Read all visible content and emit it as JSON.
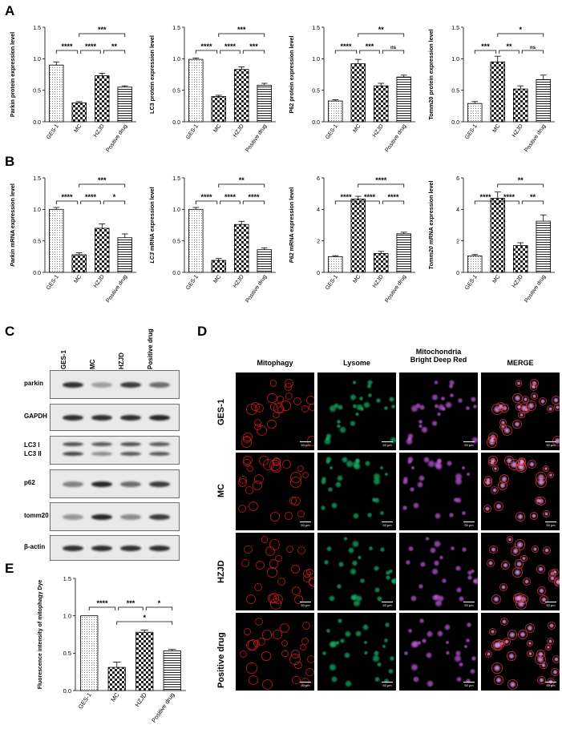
{
  "panel_letters": {
    "A": "A",
    "B": "B",
    "C": "C",
    "D": "D",
    "E": "E"
  },
  "chart_data": [
    {
      "id": "A1",
      "type": "bar",
      "ylabel": "Parkin protein expression level",
      "categories": [
        "GES-1",
        "MC",
        "HZJD",
        "Positive drug"
      ],
      "values": [
        0.9,
        0.3,
        0.73,
        0.55
      ],
      "errors": [
        0.05,
        0.02,
        0.04,
        0.02
      ],
      "ylim": [
        0,
        1.5
      ],
      "yticks": [
        "0.0",
        "0.5",
        "1.0",
        "1.5"
      ],
      "significance": [
        {
          "from": 0,
          "to": 1,
          "label": "****"
        },
        {
          "from": 1,
          "to": 2,
          "label": "****"
        },
        {
          "from": 2,
          "to": 3,
          "label": "**"
        },
        {
          "from": 1,
          "to": 3,
          "label": "***"
        }
      ]
    },
    {
      "id": "A2",
      "type": "bar",
      "ylabel": "LC3 protein expression level",
      "categories": [
        "GES-1",
        "MC",
        "HZJD",
        "Positive drug"
      ],
      "values": [
        0.99,
        0.4,
        0.83,
        0.58
      ],
      "errors": [
        0.02,
        0.02,
        0.04,
        0.03
      ],
      "ylim": [
        0,
        1.5
      ],
      "yticks": [
        "0.0",
        "0.5",
        "1.0",
        "1.5"
      ],
      "significance": [
        {
          "from": 0,
          "to": 1,
          "label": "****"
        },
        {
          "from": 1,
          "to": 2,
          "label": "****"
        },
        {
          "from": 2,
          "to": 3,
          "label": "***"
        },
        {
          "from": 1,
          "to": 3,
          "label": "***"
        }
      ]
    },
    {
      "id": "A3",
      "type": "bar",
      "ylabel": "P62 protein expression level",
      "categories": [
        "GES-1",
        "MC",
        "HZJD",
        "Positive drug"
      ],
      "values": [
        0.33,
        0.92,
        0.57,
        0.71
      ],
      "errors": [
        0.02,
        0.07,
        0.04,
        0.03
      ],
      "ylim": [
        0,
        1.5
      ],
      "yticks": [
        "0.0",
        "0.5",
        "1.0",
        "1.5"
      ],
      "significance": [
        {
          "from": 0,
          "to": 1,
          "label": "****"
        },
        {
          "from": 1,
          "to": 2,
          "label": "***"
        },
        {
          "from": 2,
          "to": 3,
          "label": "ns"
        },
        {
          "from": 1,
          "to": 3,
          "label": "**"
        }
      ]
    },
    {
      "id": "A4",
      "type": "bar",
      "ylabel": "Tomm20 protein expression level",
      "categories": [
        "GES-1",
        "MC",
        "HZJD",
        "Positive drug"
      ],
      "values": [
        0.29,
        0.95,
        0.52,
        0.67
      ],
      "errors": [
        0.03,
        0.09,
        0.05,
        0.07
      ],
      "ylim": [
        0,
        1.5
      ],
      "yticks": [
        "0.0",
        "0.5",
        "1.0",
        "1.5"
      ],
      "significance": [
        {
          "from": 0,
          "to": 1,
          "label": "***"
        },
        {
          "from": 1,
          "to": 2,
          "label": "**"
        },
        {
          "from": 2,
          "to": 3,
          "label": "ns"
        },
        {
          "from": 1,
          "to": 3,
          "label": "*"
        }
      ]
    },
    {
      "id": "B1",
      "type": "bar",
      "ylabel_italic": "Parkin",
      "ylabel_rest": " mRNA expression level",
      "categories": [
        "GES-1",
        "MC",
        "HZJD",
        "Positive drug"
      ],
      "values": [
        1.0,
        0.28,
        0.7,
        0.55
      ],
      "errors": [
        0.03,
        0.03,
        0.07,
        0.06
      ],
      "ylim": [
        0,
        1.5
      ],
      "yticks": [
        "0.0",
        "0.5",
        "1.0",
        "1.5"
      ],
      "significance": [
        {
          "from": 0,
          "to": 1,
          "label": "****"
        },
        {
          "from": 1,
          "to": 2,
          "label": "****"
        },
        {
          "from": 2,
          "to": 3,
          "label": "*"
        },
        {
          "from": 1,
          "to": 3,
          "label": "***"
        }
      ]
    },
    {
      "id": "B2",
      "type": "bar",
      "ylabel_italic": "LC3",
      "ylabel_rest": " mRNA expression level",
      "categories": [
        "GES-1",
        "MC",
        "HZJD",
        "Positive drug"
      ],
      "values": [
        1.0,
        0.19,
        0.76,
        0.36
      ],
      "errors": [
        0.03,
        0.03,
        0.05,
        0.03
      ],
      "ylim": [
        0,
        1.5
      ],
      "yticks": [
        "0.0",
        "0.5",
        "1.0",
        "1.5"
      ],
      "significance": [
        {
          "from": 0,
          "to": 1,
          "label": "****"
        },
        {
          "from": 1,
          "to": 2,
          "label": "****"
        },
        {
          "from": 2,
          "to": 3,
          "label": "****"
        },
        {
          "from": 1,
          "to": 3,
          "label": "**"
        }
      ]
    },
    {
      "id": "B3",
      "type": "bar",
      "ylabel_italic": "P62",
      "ylabel_rest": " mRNA expression level",
      "categories": [
        "GES-1",
        "MC",
        "HZJD",
        "Positive drug"
      ],
      "values": [
        1.0,
        4.65,
        1.2,
        2.45
      ],
      "errors": [
        0.06,
        0.18,
        0.13,
        0.1
      ],
      "ylim": [
        0,
        6
      ],
      "yticks": [
        "0",
        "2",
        "4",
        "6"
      ],
      "significance": [
        {
          "from": 0,
          "to": 1,
          "label": "****"
        },
        {
          "from": 1,
          "to": 2,
          "label": "****"
        },
        {
          "from": 2,
          "to": 3,
          "label": "****"
        },
        {
          "from": 1,
          "to": 3,
          "label": "****"
        }
      ]
    },
    {
      "id": "B4",
      "type": "bar",
      "ylabel_italic": "Tomm20",
      "ylabel_rest": " mRNA expression level",
      "categories": [
        "GES-1",
        "MC",
        "HZJD",
        "Positive drug"
      ],
      "values": [
        1.05,
        4.7,
        1.7,
        3.25
      ],
      "errors": [
        0.08,
        0.4,
        0.18,
        0.4
      ],
      "ylim": [
        0,
        6
      ],
      "yticks": [
        "0",
        "2",
        "4",
        "6"
      ],
      "significance": [
        {
          "from": 0,
          "to": 1,
          "label": "****"
        },
        {
          "from": 1,
          "to": 2,
          "label": "****"
        },
        {
          "from": 2,
          "to": 3,
          "label": "**"
        },
        {
          "from": 1,
          "to": 3,
          "label": "**"
        }
      ]
    },
    {
      "id": "E",
      "type": "bar",
      "ylabel": "Fluorescence intensity of mitophagy Dye",
      "categories": [
        "GES-1",
        "MC",
        "HZJD",
        "Positive drug"
      ],
      "values": [
        1.0,
        0.31,
        0.78,
        0.53
      ],
      "errors": [
        0.0,
        0.07,
        0.03,
        0.02
      ],
      "ylim": [
        0,
        1.5
      ],
      "yticks": [
        "0.0",
        "0.5",
        "1.0",
        "1.5"
      ],
      "significance": [
        {
          "from": 0,
          "to": 1,
          "label": "****"
        },
        {
          "from": 1,
          "to": 2,
          "label": "***"
        },
        {
          "from": 2,
          "to": 3,
          "label": "*"
        },
        {
          "from": 1,
          "to": 3,
          "label": "*"
        }
      ]
    }
  ],
  "patterns": [
    "dots",
    "checker",
    "checker",
    "hlines"
  ],
  "western_blot": {
    "lanes": [
      "GES-1",
      "MC",
      "HZJD",
      "Positive drug"
    ],
    "rows": [
      {
        "label": "parkin",
        "bands": [
          [
            0.9
          ],
          [
            0.35
          ],
          [
            0.85
          ],
          [
            0.6
          ]
        ]
      },
      {
        "label": "GAPDH",
        "bands": [
          [
            0.9
          ],
          [
            0.9
          ],
          [
            0.9
          ],
          [
            0.95
          ]
        ]
      },
      {
        "label": "LC3 I",
        "label2": "LC3 II",
        "bands": [
          [
            0.75,
            0.8
          ],
          [
            0.7,
            0.45
          ],
          [
            0.75,
            0.7
          ],
          [
            0.7,
            0.7
          ]
        ]
      },
      {
        "label": "p62",
        "bands": [
          [
            0.5
          ],
          [
            0.95
          ],
          [
            0.6
          ],
          [
            0.85
          ]
        ]
      },
      {
        "label": "tomm20",
        "bands": [
          [
            0.4
          ],
          [
            0.95
          ],
          [
            0.45
          ],
          [
            0.85
          ]
        ]
      },
      {
        "label": "β-actin",
        "bands": [
          [
            0.9
          ],
          [
            0.9
          ],
          [
            0.9
          ],
          [
            0.9
          ]
        ]
      }
    ]
  },
  "microscopy": {
    "columns": [
      "Mitophagy",
      "Lysome",
      "Mitochondria",
      "MERGE"
    ],
    "column3_line2": "Bright Deep Red",
    "rows": [
      "GES-1",
      "MC",
      "HZJD",
      "Positive drug"
    ],
    "scale_label": "50 μm",
    "channel_colors": [
      "#d81e1e",
      "#18b46a",
      "#c35be0",
      "#e04a8a"
    ]
  }
}
